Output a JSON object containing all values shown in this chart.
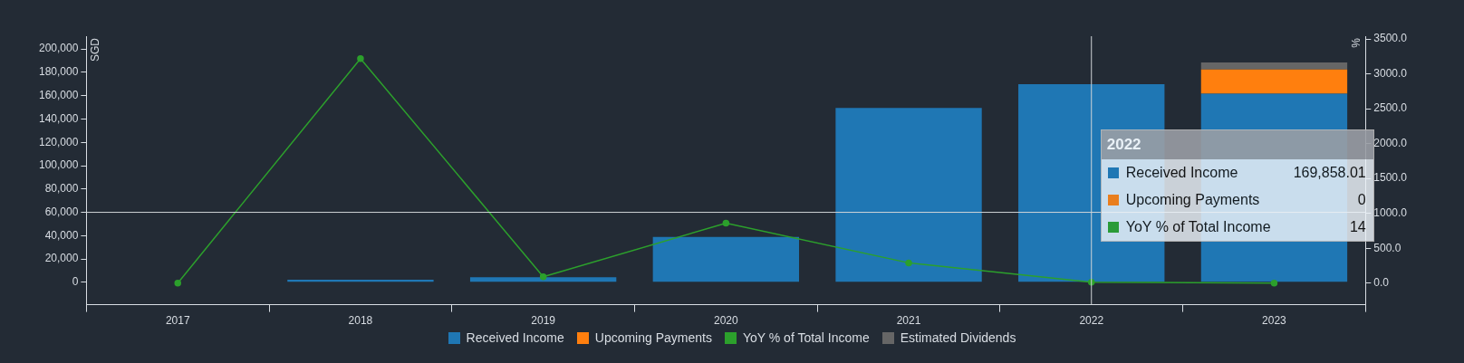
{
  "chart_data": {
    "type": "bar",
    "stacked": true,
    "categories": [
      "2017",
      "2018",
      "2019",
      "2020",
      "2021",
      "2022",
      "2023"
    ],
    "series": [
      {
        "name": "Received Income",
        "color": "#1f77b4",
        "values": [
          null,
          2200,
          4400,
          38900,
          149400,
          169858.01,
          161700
        ]
      },
      {
        "name": "Upcoming Payments",
        "color": "#ff7f0e",
        "values": [
          null,
          null,
          null,
          null,
          null,
          0,
          20700
        ]
      },
      {
        "name": "YoY % of Total Income",
        "type": "line",
        "axis": "y2",
        "color": "#2ca02c",
        "values": [
          0,
          3220,
          90,
          860,
          290,
          14,
          0
        ]
      },
      {
        "name": "Estimated Dividends",
        "color": "#666666",
        "values": [
          null,
          null,
          null,
          null,
          null,
          null,
          6000
        ]
      }
    ],
    "ylabel": "SGD",
    "y2label": "%",
    "ylim": [
      -19200,
      211000
    ],
    "yticks": [
      {
        "value": 0,
        "label": "0"
      },
      {
        "value": 20000,
        "label": "20,000"
      },
      {
        "value": 40000,
        "label": "40,000"
      },
      {
        "value": 60000,
        "label": "60,000"
      },
      {
        "value": 80000,
        "label": "80,000"
      },
      {
        "value": 100000,
        "label": "100,000"
      },
      {
        "value": 120000,
        "label": "120,000"
      },
      {
        "value": 140000,
        "label": "140,000"
      },
      {
        "value": 160000,
        "label": "160,000"
      },
      {
        "value": 180000,
        "label": "180,000"
      },
      {
        "value": 200000,
        "label": "200,000"
      }
    ],
    "y2lim": [
      -310,
      3540
    ],
    "y2ticks": [
      {
        "value": 0,
        "label": "0.0"
      },
      {
        "value": 500,
        "label": "500.0"
      },
      {
        "value": 1000,
        "label": "1000.0"
      },
      {
        "value": 1500,
        "label": "1500.0"
      },
      {
        "value": 2000,
        "label": "2000.0"
      },
      {
        "value": 2500,
        "label": "2500.0"
      },
      {
        "value": 3000,
        "label": "3000.0"
      },
      {
        "value": 3500,
        "label": "3500.0"
      }
    ],
    "ref_lines": [
      {
        "axis": "x",
        "value": "2022",
        "color": "#d0d4d8"
      },
      {
        "axis": "y",
        "value": 60000,
        "color": "#d0d4d8"
      }
    ],
    "annotations": [
      "2022",
      "169,858.01",
      "0",
      "14"
    ],
    "legend": "bottom",
    "grid": false,
    "marker": "circle",
    "line_style": "solid"
  }
}
